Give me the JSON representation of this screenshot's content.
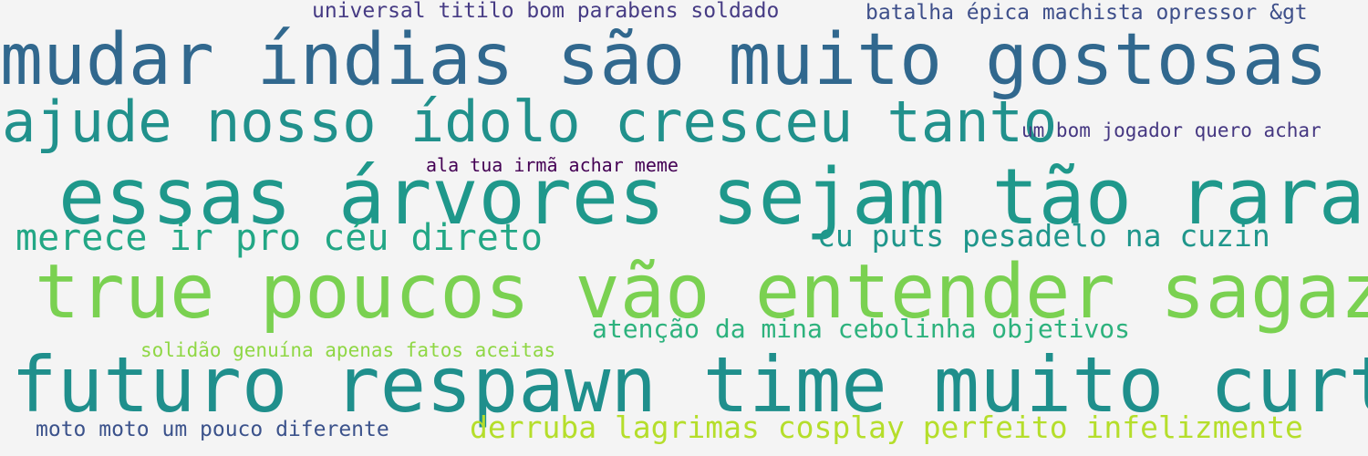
{
  "word_cloud": {
    "background_color": "#f4f4f4",
    "phrases": [
      {
        "text": "universal titilo bom parabens soldado",
        "color": "#463b84"
      },
      {
        "text": "batalha épica machista opressor &gt",
        "color": "#3e4f8a"
      },
      {
        "text": "mudar índias são muito gostosas",
        "color": "#31688e"
      },
      {
        "text": "ajude nosso ídolo cresceu tanto",
        "color": "#21918c"
      },
      {
        "text": "um bom jogador quero achar",
        "color": "#453781"
      },
      {
        "text": "ala tua irmã achar meme",
        "color": "#440154"
      },
      {
        "text": "essas árvores sejam tão raras",
        "color": "#1f988b"
      },
      {
        "text": "merece ir pro céu direto",
        "color": "#22a785"
      },
      {
        "text": "cu puts pesadelo na cuzin",
        "color": "#1f968b"
      },
      {
        "text": "true poucos vão entender sagaz",
        "color": "#7ad151"
      },
      {
        "text": "atenção da mina cebolinha objetivos",
        "color": "#2db27d"
      },
      {
        "text": "solidão genuína apenas fatos aceitas",
        "color": "#8fd744"
      },
      {
        "text": "futuro respawn time muito curto",
        "color": "#1f8f8c"
      },
      {
        "text": "moto moto um pouco diferente",
        "color": "#3b528b"
      },
      {
        "text": "derruba lagrimas cosplay perfeito infelizmente",
        "color": "#b5de2b"
      }
    ]
  }
}
